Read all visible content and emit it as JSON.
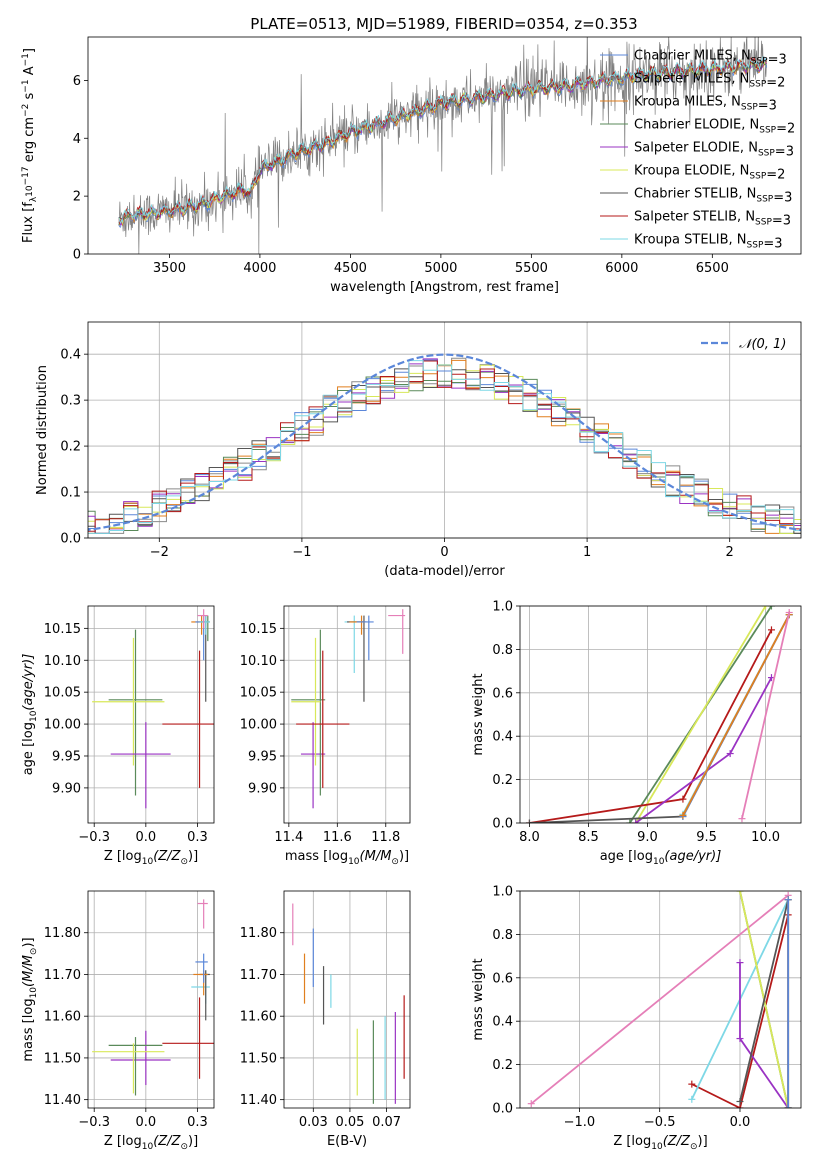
{
  "figure": {
    "title": "PLATE=0513, MJD=51989, FIBERID=0354, z=0.353"
  },
  "colors": {
    "Chabrier MILES": "#5b87d9",
    "Salpeter MILES": "#8a8a8a",
    "Kroupa MILES": "#e07f1f",
    "Chabrier ELODIE": "#5a8a5a",
    "Salpeter ELODIE": "#9a33c3",
    "Kroupa ELODIE": "#d8e85a",
    "Chabrier STELIB": "#555555",
    "Salpeter STELIB": "#b51a1a",
    "Kroupa STELIB": "#7ed8e6",
    "data_spectrum": "#808080",
    "normal_curve": "#5b87d9",
    "pink": "#e57fb8"
  },
  "chart_data": [
    {
      "id": "spectrum",
      "type": "line",
      "title": "PLATE=0513, MJD=51989, FIBERID=0354, z=0.353",
      "xlabel": "wavelength [Angstrom, rest frame]",
      "ylabel_parts": [
        "Flux [f",
        "λ",
        "10",
        "−17",
        " erg cm",
        "−2",
        " s",
        "−1",
        " A",
        "−1",
        "]"
      ],
      "xlim": [
        3050,
        6990
      ],
      "ylim": [
        0,
        7.5
      ],
      "xticks": [
        3500,
        4000,
        4500,
        5000,
        5500,
        6000,
        6500
      ],
      "yticks": [
        0,
        2,
        4,
        6
      ],
      "grid": false,
      "legend_position": "top-right",
      "legend": [
        {
          "label": "Chabrier MILES, N",
          "sub": "SSP",
          "suffix": "=3",
          "key": "Chabrier MILES"
        },
        {
          "label": "Salpeter MILES, N",
          "sub": "SSP",
          "suffix": "=2",
          "key": "Salpeter MILES"
        },
        {
          "label": "Kroupa MILES, N",
          "sub": "SSP",
          "suffix": "=3",
          "key": "Kroupa MILES"
        },
        {
          "label": "Chabrier ELODIE, N",
          "sub": "SSP",
          "suffix": "=2",
          "key": "Chabrier ELODIE"
        },
        {
          "label": "Salpeter ELODIE, N",
          "sub": "SSP",
          "suffix": "=3",
          "key": "Salpeter ELODIE"
        },
        {
          "label": "Kroupa ELODIE, N",
          "sub": "SSP",
          "suffix": "=2",
          "key": "Kroupa ELODIE"
        },
        {
          "label": "Chabrier STELIB, N",
          "sub": "SSP",
          "suffix": "=3",
          "key": "Chabrier STELIB"
        },
        {
          "label": "Salpeter STELIB, N",
          "sub": "SSP",
          "suffix": "=3",
          "key": "Salpeter STELIB"
        },
        {
          "label": "Kroupa STELIB, N",
          "sub": "SSP",
          "suffix": "=3",
          "key": "Kroupa STELIB"
        }
      ],
      "data_range": [
        3220,
        6800
      ],
      "model_continuum": {
        "x": [
          3220,
          3300,
          3400,
          3500,
          3600,
          3700,
          3800,
          3900,
          3950,
          4000,
          4100,
          4200,
          4300,
          4400,
          4500,
          4600,
          4700,
          4800,
          4900,
          5000,
          5100,
          5200,
          5300,
          5400,
          5500,
          5600,
          5700,
          5800,
          5900,
          6000,
          6100,
          6200,
          6300,
          6400,
          6500,
          6600,
          6700,
          6800
        ],
        "y": [
          1.2,
          1.35,
          1.4,
          1.5,
          1.6,
          1.75,
          2.0,
          2.2,
          2.1,
          2.9,
          3.2,
          3.5,
          3.7,
          3.9,
          4.2,
          4.4,
          4.6,
          4.8,
          5.0,
          5.2,
          5.3,
          5.4,
          5.5,
          5.6,
          5.7,
          5.75,
          5.8,
          5.9,
          6.0,
          6.1,
          6.2,
          6.25,
          6.3,
          6.35,
          6.4,
          6.45,
          6.5,
          6.55
        ]
      }
    },
    {
      "id": "residuals",
      "type": "histogram",
      "xlabel": "(data-model)/error",
      "ylabel": "Normed distribution",
      "xlim": [
        -2.5,
        2.5
      ],
      "ylim": [
        0,
        0.47
      ],
      "xticks": [
        -2,
        -1,
        0,
        1,
        2
      ],
      "yticks": [
        0.0,
        0.1,
        0.2,
        0.3,
        0.4
      ],
      "grid": true,
      "legend_position": "top-right",
      "normal_label": "𝒩(0, 1)",
      "bin_width": 0.1
    },
    {
      "id": "age_vs_Z",
      "type": "errorbar",
      "xlabel_parts": [
        "Z [log",
        "10",
        "(Z/Z",
        "⊙",
        ")]"
      ],
      "ylabel_parts": [
        "age  [log",
        "10",
        "(age/yr)]"
      ],
      "xlim": [
        -0.28,
        0.33
      ],
      "ylim": [
        9.845,
        10.185
      ],
      "xticks": [
        -0.25,
        0.0,
        0.25
      ],
      "yticks": [
        9.9,
        9.95,
        10.0,
        10.05,
        10.1,
        10.15
      ],
      "grid": true,
      "points": [
        {
          "c": "Chabrier ELODIE",
          "x": -0.05,
          "xerr": [
            0.13,
            0.13
          ],
          "y": 10.038,
          "yerr": [
            0.15,
            0.11
          ]
        },
        {
          "c": "Kroupa ELODIE",
          "x": -0.06,
          "xerr": [
            0.2,
            0.15
          ],
          "y": 10.035,
          "yerr": [
            0.1,
            0.1
          ]
        },
        {
          "c": "Salpeter ELODIE",
          "x": 0.0,
          "xerr": [
            0.17,
            0.12
          ],
          "y": 9.953,
          "yerr": [
            0.085,
            0.05
          ]
        },
        {
          "c": "Salpeter STELIB",
          "x": 0.26,
          "xerr": [
            0.18,
            0.15
          ],
          "y": 10.0,
          "yerr": [
            0.1,
            0.115
          ]
        },
        {
          "c": "Kroupa MILES",
          "x": 0.27,
          "xerr": [
            0.05,
            0.02
          ],
          "y": 10.16,
          "yerr": [
            0.02,
            0.01
          ]
        },
        {
          "c": "Chabrier MILES",
          "x": 0.28,
          "xerr": [
            0.04,
            0.02
          ],
          "y": 10.16,
          "yerr": [
            0.06,
            0.01
          ]
        },
        {
          "c": "Chabrier STELIB",
          "x": 0.29,
          "xerr": [
            0.03,
            0.02
          ],
          "y": 10.16,
          "yerr": [
            0.125,
            0.01
          ]
        },
        {
          "c": "Chabrier ELODIE",
          "x": 0.3,
          "xerr": [
            0.01,
            0.005
          ],
          "y": 10.16,
          "yerr": [
            0.03,
            0.01
          ]
        },
        {
          "c": "Kroupa STELIB",
          "x": 0.29,
          "xerr": [
            0.03,
            0.02
          ],
          "y": 10.16,
          "yerr": [
            0.02,
            0.01
          ]
        },
        {
          "c": "pink",
          "x": 0.28,
          "xerr": [
            0.03,
            0.02
          ],
          "y": 10.17,
          "yerr": [
            0.02,
            0.01
          ]
        }
      ]
    },
    {
      "id": "age_vs_mass",
      "type": "errorbar",
      "xlabel_parts": [
        "mass [log",
        "10",
        "(M/M",
        "⊙",
        ")]"
      ],
      "xlim": [
        11.38,
        11.9
      ],
      "ylim": [
        9.845,
        10.185
      ],
      "xticks": [
        11.4,
        11.6,
        11.8
      ],
      "yticks": [
        9.9,
        9.95,
        10.0,
        10.05,
        10.1,
        10.15
      ],
      "grid": true,
      "points": [
        {
          "c": "Salpeter ELODIE",
          "x": 11.5,
          "xerr": [
            0.05,
            0.05
          ],
          "y": 9.953,
          "yerr": [
            0.085,
            0.05
          ]
        },
        {
          "c": "Chabrier ELODIE",
          "x": 11.53,
          "xerr": [
            0.12,
            0.02
          ],
          "y": 10.038,
          "yerr": [
            0.15,
            0.11
          ]
        },
        {
          "c": "Kroupa ELODIE",
          "x": 11.51,
          "xerr": [
            0.1,
            0.02
          ],
          "y": 10.035,
          "yerr": [
            0.1,
            0.1
          ]
        },
        {
          "c": "Salpeter STELIB",
          "x": 11.54,
          "xerr": [
            0.11,
            0.11
          ],
          "y": 10.0,
          "yerr": [
            0.1,
            0.115
          ]
        },
        {
          "c": "Kroupa STELIB",
          "x": 11.67,
          "xerr": [
            0.04,
            0.04
          ],
          "y": 10.16,
          "yerr": [
            0.08,
            0.01
          ]
        },
        {
          "c": "Chabrier STELIB",
          "x": 11.71,
          "xerr": [
            0.07,
            0.01
          ],
          "y": 10.16,
          "yerr": [
            0.125,
            0.01
          ]
        },
        {
          "c": "Kroupa MILES",
          "x": 11.7,
          "xerr": [
            0.05,
            0.01
          ],
          "y": 10.16,
          "yerr": [
            0.02,
            0.01
          ]
        },
        {
          "c": "Chabrier MILES",
          "x": 11.73,
          "xerr": [
            0.05,
            0.02
          ],
          "y": 10.16,
          "yerr": [
            0.06,
            0.01
          ]
        },
        {
          "c": "pink",
          "x": 11.87,
          "xerr": [
            0.06,
            0.01
          ],
          "y": 10.17,
          "yerr": [
            0.06,
            0.01
          ]
        }
      ]
    },
    {
      "id": "weight_vs_age",
      "type": "line",
      "xlabel_parts": [
        "age  [log",
        "10",
        "(age/yr)]"
      ],
      "ylabel": "mass weight",
      "xlim": [
        7.92,
        10.3
      ],
      "ylim": [
        0,
        1
      ],
      "xticks": [
        8.0,
        8.5,
        9.0,
        9.5,
        10.0
      ],
      "yticks": [
        0.0,
        0.2,
        0.4,
        0.6,
        0.8,
        1.0
      ],
      "grid": true,
      "series": [
        {
          "c": "Chabrier ELODIE",
          "x": [
            8.85,
            10.05
          ],
          "y": [
            0.0,
            1.0
          ]
        },
        {
          "c": "Kroupa ELODIE",
          "x": [
            8.9,
            10.0
          ],
          "y": [
            0.0,
            1.0
          ]
        },
        {
          "c": "Salpeter STELIB",
          "x": [
            8.0,
            9.3,
            10.05
          ],
          "y": [
            0.0,
            0.11,
            0.89
          ]
        },
        {
          "c": "Salpeter ELODIE",
          "x": [
            8.9,
            9.7,
            10.05
          ],
          "y": [
            0.0,
            0.32,
            0.67
          ]
        },
        {
          "c": "Chabrier STELIB",
          "x": [
            8.0,
            9.3,
            10.2
          ],
          "y": [
            0.0,
            0.03,
            0.96
          ]
        },
        {
          "c": "Kroupa STELIB",
          "x": [
            9.3,
            10.2
          ],
          "y": [
            0.04,
            0.96
          ]
        },
        {
          "c": "Chabrier MILES",
          "x": [
            9.3,
            10.2
          ],
          "y": [
            0.03,
            0.96
          ]
        },
        {
          "c": "Kroupa MILES",
          "x": [
            9.3,
            10.2
          ],
          "y": [
            0.035,
            0.96
          ]
        },
        {
          "c": "pink",
          "x": [
            9.8,
            10.2
          ],
          "y": [
            0.02,
            0.97
          ]
        }
      ]
    },
    {
      "id": "mass_vs_Z",
      "type": "errorbar",
      "xlabel_parts": [
        "Z [log",
        "10",
        "(Z/Z",
        "⊙",
        ")]"
      ],
      "ylabel_parts": [
        "mass [log",
        "10",
        "(M/M",
        "⊙",
        ")]"
      ],
      "xlim": [
        -0.28,
        0.33
      ],
      "ylim": [
        11.38,
        11.9
      ],
      "xticks": [
        -0.25,
        0.0,
        0.25
      ],
      "yticks": [
        11.4,
        11.5,
        11.6,
        11.7,
        11.8
      ],
      "grid": true,
      "points": [
        {
          "c": "Salpeter ELODIE",
          "x": 0.0,
          "xerr": [
            0.17,
            0.12
          ],
          "y": 11.495,
          "yerr": [
            0.06,
            0.07
          ]
        },
        {
          "c": "Chabrier ELODIE",
          "x": -0.05,
          "xerr": [
            0.13,
            0.13
          ],
          "y": 11.53,
          "yerr": [
            0.12,
            0.02
          ]
        },
        {
          "c": "Kroupa ELODIE",
          "x": -0.06,
          "xerr": [
            0.2,
            0.15
          ],
          "y": 11.515,
          "yerr": [
            0.1,
            0.02
          ]
        },
        {
          "c": "Salpeter STELIB",
          "x": 0.26,
          "xerr": [
            0.18,
            0.15
          ],
          "y": 11.535,
          "yerr": [
            0.085,
            0.11
          ]
        },
        {
          "c": "Kroupa STELIB",
          "x": 0.29,
          "xerr": [
            0.07,
            0.02
          ],
          "y": 11.67,
          "yerr": [
            0.04,
            0.04
          ]
        },
        {
          "c": "Chabrier STELIB",
          "x": 0.29,
          "xerr": [
            0.03,
            0.02
          ],
          "y": 11.7,
          "yerr": [
            0.11,
            0.01
          ]
        },
        {
          "c": "Kroupa MILES",
          "x": 0.28,
          "xerr": [
            0.05,
            0.02
          ],
          "y": 11.7,
          "yerr": [
            0.05,
            0.01
          ]
        },
        {
          "c": "Chabrier MILES",
          "x": 0.28,
          "xerr": [
            0.04,
            0.02
          ],
          "y": 11.73,
          "yerr": [
            0.05,
            0.02
          ]
        },
        {
          "c": "pink",
          "x": 0.28,
          "xerr": [
            0.03,
            0.02
          ],
          "y": 11.87,
          "yerr": [
            0.06,
            0.01
          ]
        }
      ]
    },
    {
      "id": "mass_vs_ebv",
      "type": "errorbar",
      "xlabel": "E(B-V)",
      "xlim": [
        0.005,
        0.091
      ],
      "ylim": [
        11.38,
        11.9
      ],
      "xticks": [
        0.025,
        0.05,
        0.075
      ],
      "yticks": [
        11.4,
        11.5,
        11.6,
        11.7,
        11.8
      ],
      "grid": true,
      "points": [
        {
          "c": "pink",
          "x": 0.011,
          "xerr": [
            0,
            0
          ],
          "y": 11.82,
          "yerr": [
            0.05,
            0.05
          ]
        },
        {
          "c": "Kroupa MILES",
          "x": 0.019,
          "xerr": [
            0,
            0
          ],
          "y": 11.69,
          "yerr": [
            0.06,
            0.06
          ]
        },
        {
          "c": "Chabrier MILES",
          "x": 0.025,
          "xerr": [
            0,
            0
          ],
          "y": 11.74,
          "yerr": [
            0.07,
            0.07
          ]
        },
        {
          "c": "Chabrier STELIB",
          "x": 0.032,
          "xerr": [
            0,
            0
          ],
          "y": 11.65,
          "yerr": [
            0.07,
            0.07
          ]
        },
        {
          "c": "Kroupa STELIB",
          "x": 0.037,
          "xerr": [
            0,
            0
          ],
          "y": 11.66,
          "yerr": [
            0.04,
            0.04
          ]
        },
        {
          "c": "Kroupa ELODIE",
          "x": 0.055,
          "xerr": [
            0,
            0
          ],
          "y": 11.49,
          "yerr": [
            0.08,
            0.08
          ]
        },
        {
          "c": "Chabrier ELODIE",
          "x": 0.066,
          "xerr": [
            0,
            0
          ],
          "y": 11.49,
          "yerr": [
            0.1,
            0.1
          ]
        },
        {
          "c": "Kroupa STELIB",
          "x": 0.074,
          "xerr": [
            0,
            0
          ],
          "y": 11.5,
          "yerr": [
            0.1,
            0.1
          ]
        },
        {
          "c": "Salpeter ELODIE",
          "x": 0.081,
          "xerr": [
            0,
            0
          ],
          "y": 11.5,
          "yerr": [
            0.11,
            0.11
          ]
        },
        {
          "c": "Salpeter STELIB",
          "x": 0.087,
          "xerr": [
            0,
            0
          ],
          "y": 11.55,
          "yerr": [
            0.1,
            0.1
          ]
        }
      ]
    },
    {
      "id": "weight_vs_Z",
      "type": "line",
      "xlabel_parts": [
        "Z [log",
        "10",
        "(Z/Z",
        "⊙",
        ")]"
      ],
      "ylabel": "mass weight",
      "xlim": [
        -1.37,
        0.38
      ],
      "ylim": [
        0,
        1
      ],
      "xticks": [
        -1.0,
        -0.5,
        0.0
      ],
      "yticks": [
        0.0,
        0.2,
        0.4,
        0.6,
        0.8,
        1.0
      ],
      "grid": true,
      "series": [
        {
          "c": "pink",
          "x": [
            -1.3,
            0.3
          ],
          "y": [
            0.02,
            0.98
          ]
        },
        {
          "c": "Salpeter STELIB",
          "x": [
            -0.3,
            0.0,
            0.3
          ],
          "y": [
            0.11,
            0.0,
            0.89
          ]
        },
        {
          "c": "Kroupa STELIB",
          "x": [
            -0.3,
            0.3
          ],
          "y": [
            0.04,
            0.96
          ]
        },
        {
          "c": "Salpeter ELODIE",
          "x": [
            0.0,
            0.0,
            0.3
          ],
          "y": [
            0.67,
            0.32,
            0.0
          ]
        },
        {
          "c": "Chabrier ELODIE",
          "x": [
            0.0,
            0.3
          ],
          "y": [
            1.0,
            0.0
          ]
        },
        {
          "c": "Kroupa ELODIE",
          "x": [
            0.0,
            0.3
          ],
          "y": [
            1.0,
            0.0
          ]
        },
        {
          "c": "Chabrier STELIB",
          "x": [
            0.0,
            0.3,
            0.3
          ],
          "y": [
            0.03,
            0.96,
            0.0
          ]
        },
        {
          "c": "Kroupa MILES",
          "x": [
            0.3,
            0.3
          ],
          "y": [
            0.0,
            0.96
          ]
        },
        {
          "c": "Chabrier MILES",
          "x": [
            0.3,
            0.3
          ],
          "y": [
            0.0,
            0.96
          ]
        }
      ]
    }
  ]
}
